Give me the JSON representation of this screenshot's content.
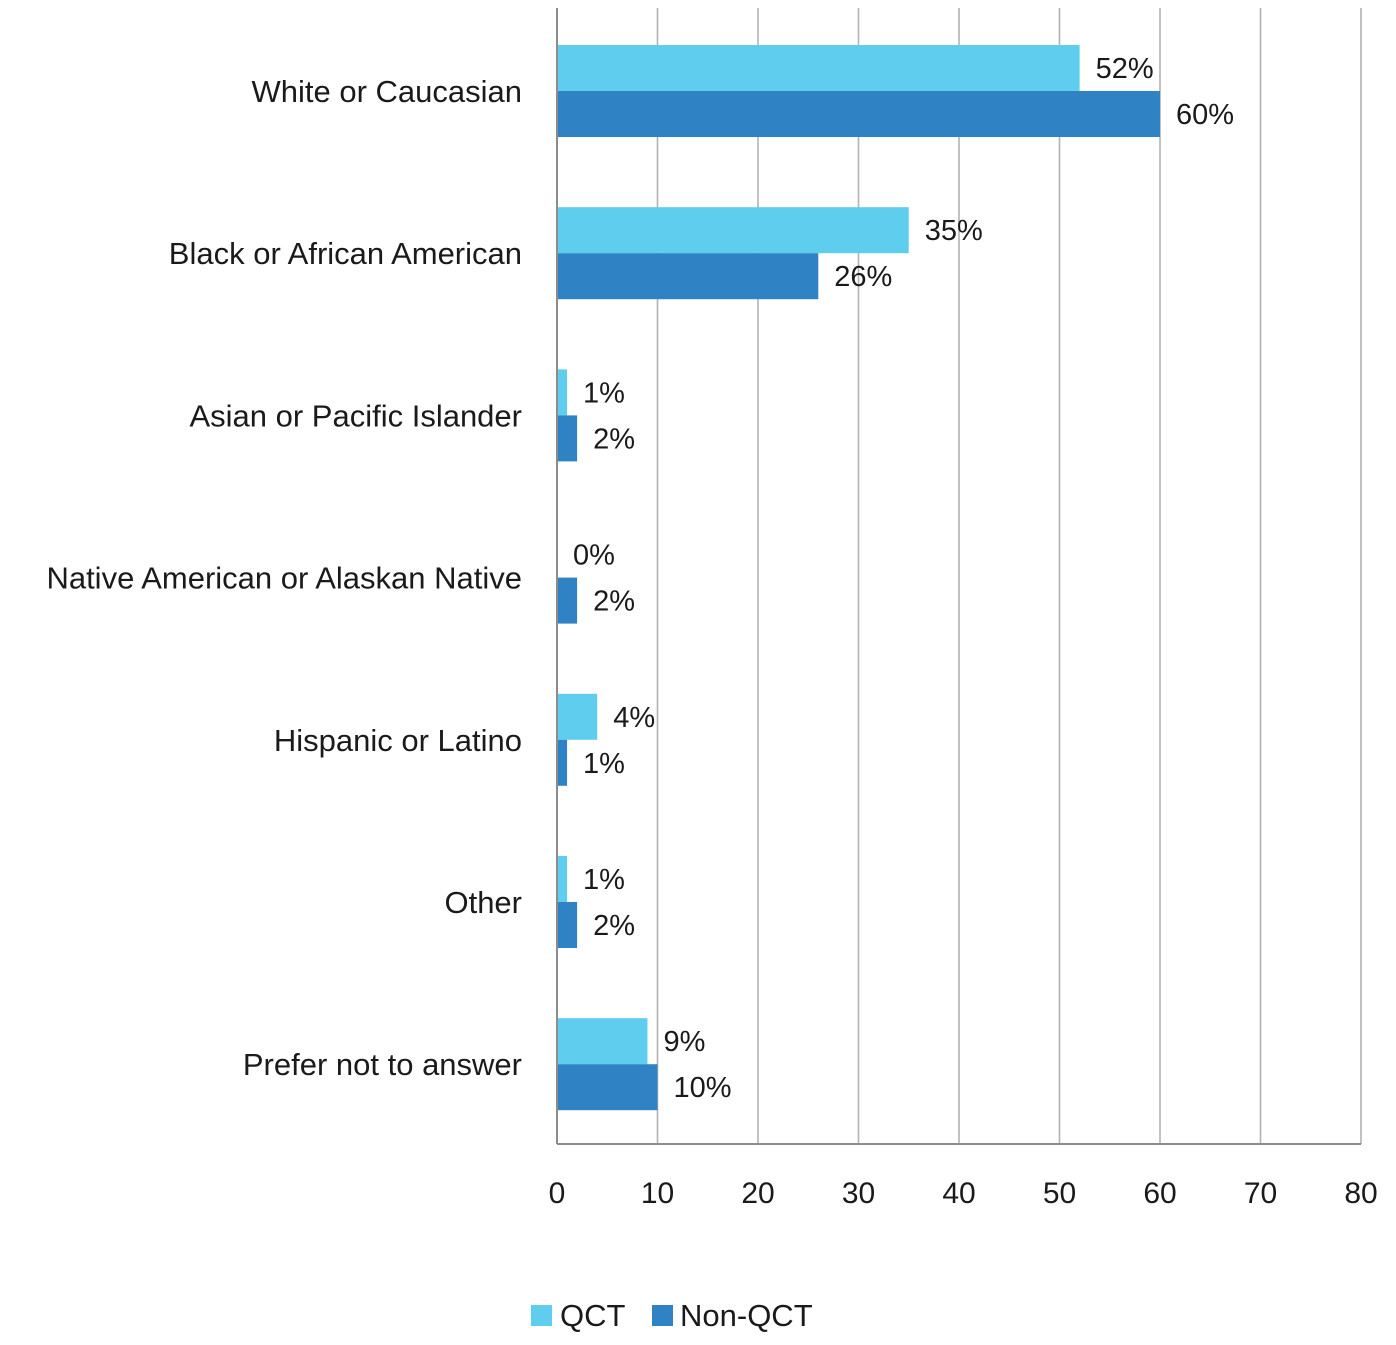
{
  "chart_data": {
    "type": "bar",
    "orientation": "horizontal",
    "categories": [
      "White or Caucasian",
      "Black or African American",
      "Asian or Pacific Islander",
      "Native American or Alaskan Native",
      "Hispanic or Latino",
      "Other",
      "Prefer not to answer"
    ],
    "series": [
      {
        "name": "QCT",
        "color": "#5ecdee",
        "values": [
          52,
          35,
          1,
          0,
          4,
          1,
          9
        ],
        "labels": [
          "52%",
          "35%",
          "1%",
          "0%",
          "4%",
          "1%",
          "9%"
        ]
      },
      {
        "name": "Non-QCT",
        "color": "#2f83c4",
        "values": [
          60,
          26,
          2,
          2,
          1,
          2,
          10
        ],
        "labels": [
          "60%",
          "26%",
          "2%",
          "2%",
          "1%",
          "2%",
          "10%"
        ]
      }
    ],
    "xlim": [
      0,
      80
    ],
    "xticks": [
      "0",
      "10",
      "20",
      "30",
      "40",
      "50",
      "60",
      "70",
      "80"
    ],
    "grid": "vertical",
    "legend": "bottom-center",
    "title": "",
    "xlabel": "",
    "ylabel": ""
  }
}
